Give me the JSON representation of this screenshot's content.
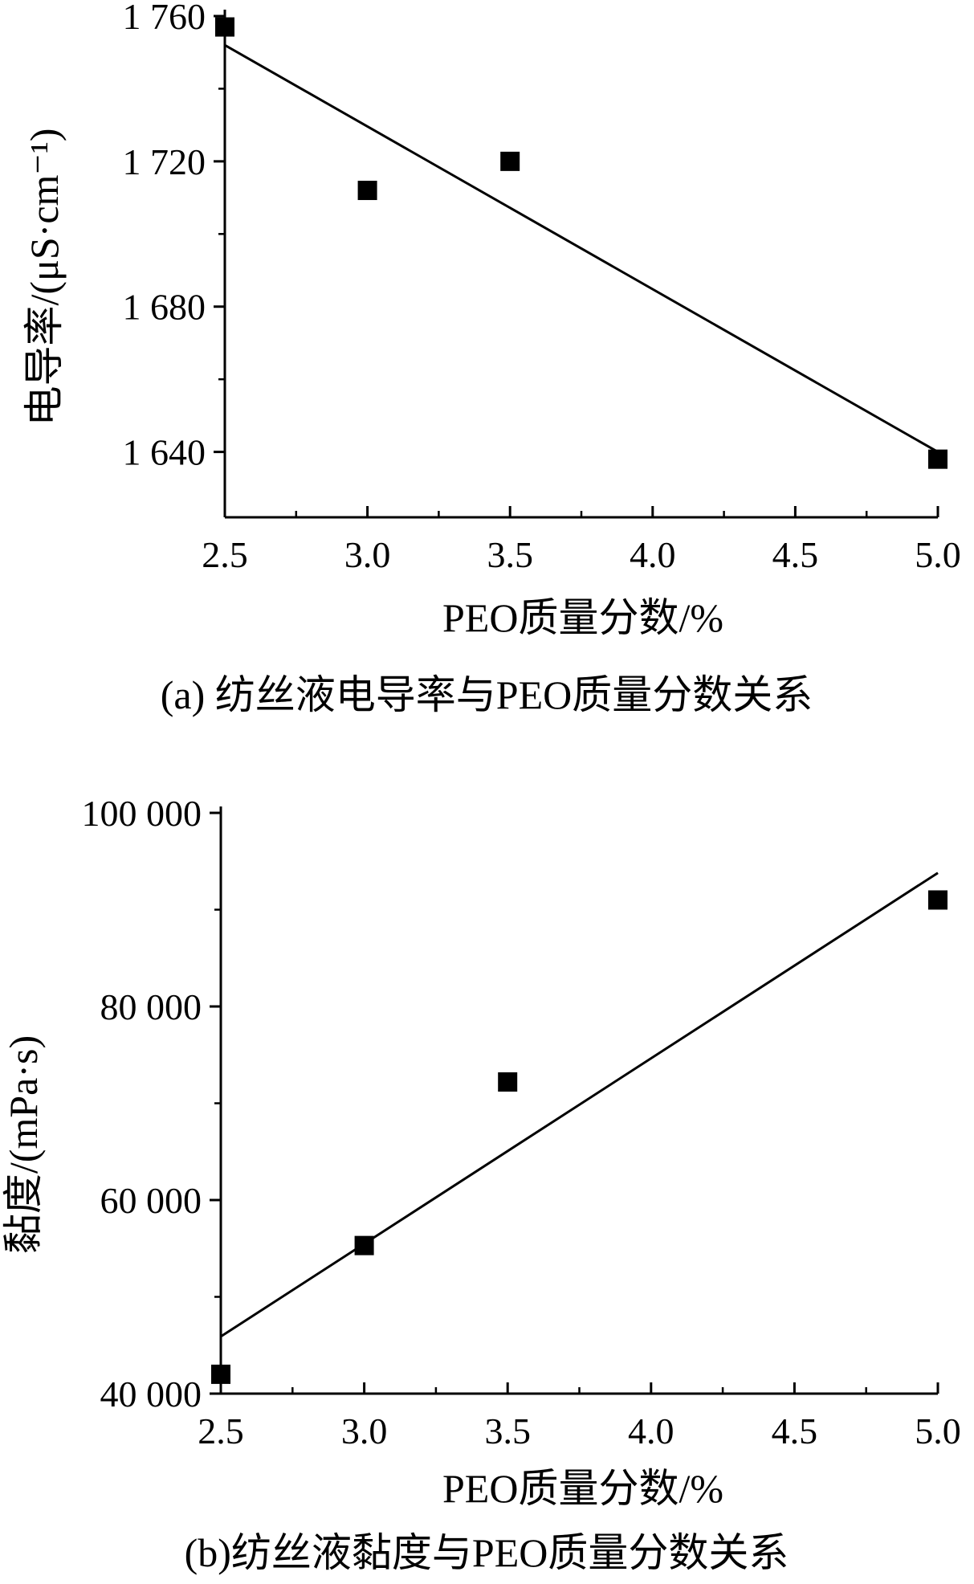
{
  "chart_data": [
    {
      "type": "scatter",
      "caption": "(a) 纺丝液电导率与PEO质量分数关系",
      "xlabel": "PEO质量分数/%",
      "ylabel": "电导率/(μS·cm⁻¹)",
      "xlim": [
        2.5,
        5.0
      ],
      "ylim": [
        1622,
        1760
      ],
      "xticks": [
        2.5,
        3.0,
        3.5,
        4.0,
        4.5,
        5.0
      ],
      "xtick_labels": [
        "2.5",
        "3.0",
        "3.5",
        "4.0",
        "4.5",
        "5.0"
      ],
      "yticks": [
        1640,
        1680,
        1720,
        1760
      ],
      "ytick_labels": [
        "1 640",
        "1 680",
        "1 720",
        "1 760"
      ],
      "grid": false,
      "marker": "square",
      "color": "#000000",
      "x": [
        2.5,
        3.0,
        3.5,
        5.0
      ],
      "y": [
        1757,
        1712,
        1720,
        1638
      ],
      "fit_line": {
        "x": [
          2.5,
          5.0
        ],
        "y": [
          1752,
          1640
        ]
      }
    },
    {
      "type": "scatter",
      "caption": "(b)纺丝液黏度与PEO质量分数关系",
      "xlabel": "PEO质量分数/%",
      "ylabel": "黏度/(mPa·s)",
      "xlim": [
        2.5,
        5.0
      ],
      "ylim": [
        40000,
        100000
      ],
      "xticks": [
        2.5,
        3.0,
        3.5,
        4.0,
        4.5,
        5.0
      ],
      "xtick_labels": [
        "2.5",
        "3.0",
        "3.5",
        "4.0",
        "4.5",
        "5.0"
      ],
      "yticks": [
        40000,
        60000,
        80000,
        100000
      ],
      "ytick_labels": [
        "40 000",
        "60 000",
        "80 000",
        "100 000"
      ],
      "grid": false,
      "marker": "square",
      "color": "#000000",
      "x": [
        2.5,
        3.0,
        3.5,
        5.0
      ],
      "y": [
        42000,
        55300,
        72200,
        91000
      ],
      "fit_line": {
        "x": [
          2.5,
          5.0
        ],
        "y": [
          45900,
          93800
        ]
      }
    }
  ]
}
